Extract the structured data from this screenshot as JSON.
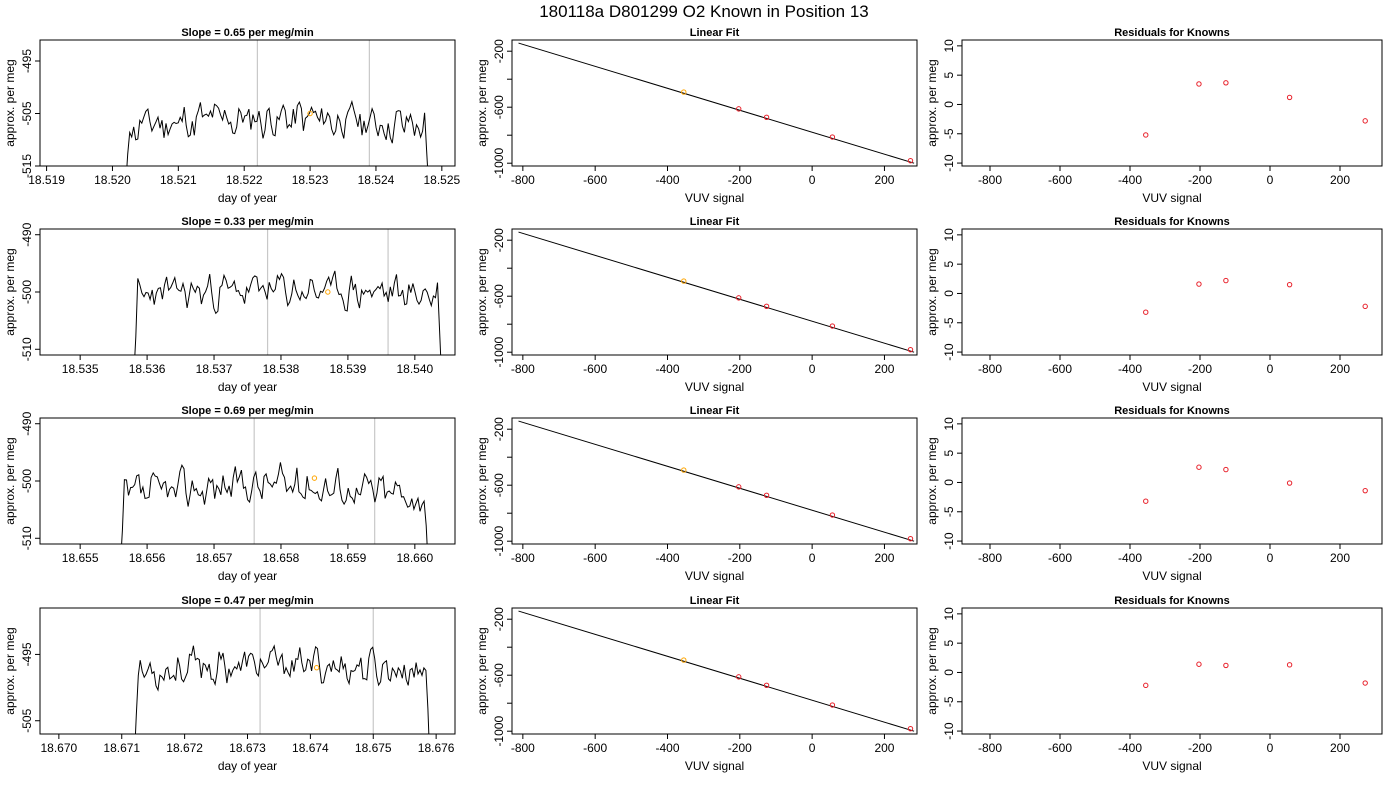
{
  "figure": {
    "title": "180118a     D801299   O2 Known in Position  13"
  },
  "colors": {
    "trace": "#000000",
    "marker_orange": "#ffa500",
    "marker_red": "#e8202a",
    "vline": "#c8c8c8",
    "fit_line": "#000000"
  },
  "chart_data": [
    {
      "type": "line",
      "title": "Slope =  0.65  per meg/min",
      "xlabel": "day of year",
      "ylabel": "approx. per meg",
      "xlim": [
        18.5189,
        18.5252
      ],
      "ylim": [
        -515,
        -491
      ],
      "xticks": [
        "18.519",
        "18.520",
        "18.521",
        "18.522",
        "18.523",
        "18.524",
        "18.525"
      ],
      "xtick_values": [
        18.519,
        18.52,
        18.521,
        18.522,
        18.523,
        18.524,
        18.525
      ],
      "yticks": [
        "-495",
        "-505",
        "-515"
      ],
      "ytick_values": [
        -495,
        -505,
        -515
      ],
      "vlines": [
        18.5222,
        18.5239
      ],
      "marker": {
        "x": 18.523,
        "y": -505
      },
      "trace": {
        "x_start": 18.5202,
        "x_end": 18.5248,
        "baseline": -507.5,
        "amplitude": 3.2,
        "drift": 1.5,
        "seed": 11
      }
    },
    {
      "type": "scatter",
      "title": "Linear Fit",
      "xlabel": "VUV signal",
      "ylabel": "approx. per meg",
      "xlim": [
        -830,
        290
      ],
      "ylim": [
        -1020,
        -120
      ],
      "xticks": [
        "-800",
        "-600",
        "-400",
        "-200",
        "0",
        "200"
      ],
      "xtick_values": [
        -800,
        -600,
        -400,
        -200,
        0,
        200
      ],
      "yticks": [
        "-200",
        "-600",
        "-1000"
      ],
      "ytick_values": [
        -200,
        -600,
        -1000
      ],
      "fit_line": {
        "x": [
          -812,
          282
        ],
        "y": [
          -142,
          -1000
        ]
      },
      "points": {
        "x": [
          -355,
          -203,
          -126,
          56,
          272
        ],
        "y": [
          -492,
          -612,
          -672,
          -813,
          -982
        ]
      },
      "point_colors": [
        "#ffa500",
        "#e8202a",
        "#e8202a",
        "#e8202a",
        "#e8202a"
      ]
    },
    {
      "type": "scatter",
      "title": "Residuals for Knowns",
      "xlabel": "VUV signal",
      "ylabel": "approx. per meg",
      "xlim": [
        -880,
        320
      ],
      "ylim": [
        -10.5,
        11
      ],
      "xticks": [
        "-800",
        "-600",
        "-400",
        "-200",
        "0",
        "200"
      ],
      "xtick_values": [
        -800,
        -600,
        -400,
        -200,
        0,
        200
      ],
      "yticks": [
        "-10",
        "-5",
        "0",
        "5",
        "10"
      ],
      "ytick_values": [
        -10,
        -5,
        0,
        5,
        10
      ],
      "points": {
        "x": [
          -355,
          -203,
          -126,
          56,
          272
        ],
        "y": [
          -5.2,
          3.5,
          3.7,
          1.2,
          -2.8
        ]
      },
      "point_colors": [
        "#e8202a",
        "#e8202a",
        "#e8202a",
        "#e8202a",
        "#e8202a"
      ]
    },
    {
      "type": "line",
      "title": "Slope =  0.33  per meg/min",
      "xlabel": "day of year",
      "ylabel": "approx. per meg",
      "xlim": [
        18.5344,
        18.5406
      ],
      "ylim": [
        -511,
        -489
      ],
      "xticks": [
        "18.535",
        "18.536",
        "18.537",
        "18.538",
        "18.539",
        "18.540"
      ],
      "xtick_values": [
        18.535,
        18.536,
        18.537,
        18.538,
        18.539,
        18.54
      ],
      "yticks": [
        "-490",
        "-500",
        "-510"
      ],
      "ytick_values": [
        -490,
        -500,
        -510
      ],
      "vlines": [
        18.5378,
        18.5396
      ],
      "marker": {
        "x": 18.5387,
        "y": -500
      },
      "trace": {
        "x_start": 18.5358,
        "x_end": 18.5404,
        "baseline": -500.5,
        "amplitude": 2.6,
        "drift": 0.8,
        "seed": 23
      }
    },
    {
      "type": "scatter",
      "title": "Linear Fit",
      "xlabel": "VUV signal",
      "ylabel": "approx. per meg",
      "xlim": [
        -830,
        290
      ],
      "ylim": [
        -1020,
        -120
      ],
      "xticks": [
        "-800",
        "-600",
        "-400",
        "-200",
        "0",
        "200"
      ],
      "xtick_values": [
        -800,
        -600,
        -400,
        -200,
        0,
        200
      ],
      "yticks": [
        "-200",
        "-600",
        "-1000"
      ],
      "ytick_values": [
        -200,
        -600,
        -1000
      ],
      "fit_line": {
        "x": [
          -812,
          282
        ],
        "y": [
          -142,
          -1000
        ]
      },
      "points": {
        "x": [
          -355,
          -203,
          -126,
          56,
          272
        ],
        "y": [
          -492,
          -612,
          -672,
          -813,
          -982
        ]
      },
      "point_colors": [
        "#ffa500",
        "#e8202a",
        "#e8202a",
        "#e8202a",
        "#e8202a"
      ]
    },
    {
      "type": "scatter",
      "title": "Residuals for Knowns",
      "xlabel": "VUV signal",
      "ylabel": "approx. per meg",
      "xlim": [
        -880,
        320
      ],
      "ylim": [
        -10.5,
        11
      ],
      "xticks": [
        "-800",
        "-600",
        "-400",
        "-200",
        "0",
        "200"
      ],
      "xtick_values": [
        -800,
        -600,
        -400,
        -200,
        0,
        200
      ],
      "yticks": [
        "-10",
        "-5",
        "0",
        "5",
        "10"
      ],
      "ytick_values": [
        -10,
        -5,
        0,
        5,
        10
      ],
      "points": {
        "x": [
          -355,
          -203,
          -126,
          56,
          272
        ],
        "y": [
          -3.2,
          1.6,
          2.2,
          1.5,
          -2.2
        ]
      },
      "point_colors": [
        "#e8202a",
        "#e8202a",
        "#e8202a",
        "#e8202a",
        "#e8202a"
      ]
    },
    {
      "type": "line",
      "title": "Slope =  0.69  per meg/min",
      "xlabel": "day of year",
      "ylabel": "approx. per meg",
      "xlim": [
        18.6544,
        18.6606
      ],
      "ylim": [
        -511,
        -489
      ],
      "xticks": [
        "18.655",
        "18.656",
        "18.657",
        "18.658",
        "18.659",
        "18.660"
      ],
      "xtick_values": [
        18.655,
        18.656,
        18.657,
        18.658,
        18.659,
        18.66
      ],
      "yticks": [
        "-490",
        "-500",
        "-510"
      ],
      "ytick_values": [
        -490,
        -500,
        -510
      ],
      "vlines": [
        18.6576,
        18.6594
      ],
      "marker": {
        "x": 18.6585,
        "y": -499.5
      },
      "trace": {
        "x_start": 18.6556,
        "x_end": 18.6602,
        "baseline": -503,
        "amplitude": 2.8,
        "drift": 2.5,
        "seed": 37
      }
    },
    {
      "type": "scatter",
      "title": "Linear Fit",
      "xlabel": "VUV signal",
      "ylabel": "approx. per meg",
      "xlim": [
        -830,
        290
      ],
      "ylim": [
        -1020,
        -120
      ],
      "xticks": [
        "-800",
        "-600",
        "-400",
        "-200",
        "0",
        "200"
      ],
      "xtick_values": [
        -800,
        -600,
        -400,
        -200,
        0,
        200
      ],
      "yticks": [
        "-200",
        "-600",
        "-1000"
      ],
      "ytick_values": [
        -200,
        -600,
        -1000
      ],
      "fit_line": {
        "x": [
          -812,
          282
        ],
        "y": [
          -142,
          -1000
        ]
      },
      "points": {
        "x": [
          -355,
          -203,
          -126,
          56,
          272
        ],
        "y": [
          -492,
          -612,
          -672,
          -813,
          -982
        ]
      },
      "point_colors": [
        "#ffa500",
        "#e8202a",
        "#e8202a",
        "#e8202a",
        "#e8202a"
      ]
    },
    {
      "type": "scatter",
      "title": "Residuals for Knowns",
      "xlabel": "VUV signal",
      "ylabel": "approx. per meg",
      "xlim": [
        -880,
        320
      ],
      "ylim": [
        -10.5,
        11
      ],
      "xticks": [
        "-800",
        "-600",
        "-400",
        "-200",
        "0",
        "200"
      ],
      "xtick_values": [
        -800,
        -600,
        -400,
        -200,
        0,
        200
      ],
      "yticks": [
        "-10",
        "-5",
        "0",
        "5",
        "10"
      ],
      "ytick_values": [
        -10,
        -5,
        0,
        5,
        10
      ],
      "points": {
        "x": [
          -355,
          -203,
          -126,
          56,
          272
        ],
        "y": [
          -3.2,
          2.6,
          2.2,
          -0.1,
          -1.4
        ]
      },
      "point_colors": [
        "#e8202a",
        "#e8202a",
        "#e8202a",
        "#e8202a",
        "#e8202a"
      ]
    },
    {
      "type": "line",
      "title": "Slope =  0.47  per meg/min",
      "xlabel": "day of year",
      "ylabel": "approx. per meg",
      "xlim": [
        18.6697,
        18.6763
      ],
      "ylim": [
        -507,
        -488
      ],
      "xticks": [
        "18.670",
        "18.671",
        "18.672",
        "18.673",
        "18.674",
        "18.675",
        "18.676"
      ],
      "xtick_values": [
        18.67,
        18.671,
        18.672,
        18.673,
        18.674,
        18.675,
        18.676
      ],
      "yticks": [
        "-495",
        "-505"
      ],
      "ytick_values": [
        -495,
        -505
      ],
      "vlines": [
        18.6732,
        18.675
      ],
      "marker": {
        "x": 18.6741,
        "y": -497
      },
      "trace": {
        "x_start": 18.6712,
        "x_end": 18.6759,
        "baseline": -497.5,
        "amplitude": 2.3,
        "drift": 0.9,
        "seed": 53
      }
    },
    {
      "type": "scatter",
      "title": "Linear Fit",
      "xlabel": "VUV signal",
      "ylabel": "approx. per meg",
      "xlim": [
        -830,
        290
      ],
      "ylim": [
        -1020,
        -120
      ],
      "xticks": [
        "-800",
        "-600",
        "-400",
        "-200",
        "0",
        "200"
      ],
      "xtick_values": [
        -800,
        -600,
        -400,
        -200,
        0,
        200
      ],
      "yticks": [
        "-200",
        "-600",
        "-1000"
      ],
      "ytick_values": [
        -200,
        -600,
        -1000
      ],
      "fit_line": {
        "x": [
          -812,
          282
        ],
        "y": [
          -142,
          -1000
        ]
      },
      "points": {
        "x": [
          -355,
          -203,
          -126,
          56,
          272
        ],
        "y": [
          -492,
          -612,
          -672,
          -813,
          -982
        ]
      },
      "point_colors": [
        "#ffa500",
        "#e8202a",
        "#e8202a",
        "#e8202a",
        "#e8202a"
      ]
    },
    {
      "type": "scatter",
      "title": "Residuals for Knowns",
      "xlabel": "VUV signal",
      "ylabel": "approx. per meg",
      "xlim": [
        -880,
        320
      ],
      "ylim": [
        -10.5,
        11
      ],
      "xticks": [
        "-800",
        "-600",
        "-400",
        "-200",
        "0",
        "200"
      ],
      "xtick_values": [
        -800,
        -600,
        -400,
        -200,
        0,
        200
      ],
      "yticks": [
        "-10",
        "-5",
        "0",
        "5",
        "10"
      ],
      "ytick_values": [
        -10,
        -5,
        0,
        5,
        10
      ],
      "points": {
        "x": [
          -355,
          -203,
          -126,
          56,
          272
        ],
        "y": [
          -2.2,
          1.4,
          1.2,
          1.3,
          -1.8
        ]
      },
      "point_colors": [
        "#e8202a",
        "#e8202a",
        "#e8202a",
        "#e8202a",
        "#e8202a"
      ]
    }
  ]
}
